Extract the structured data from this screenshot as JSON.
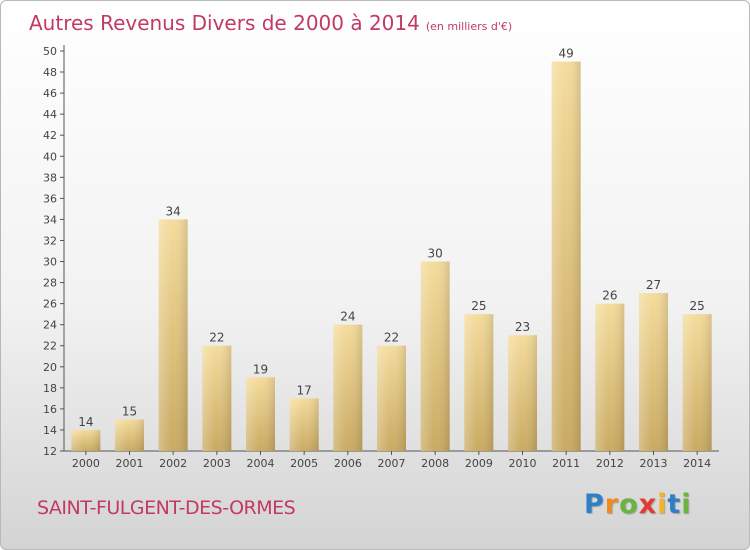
{
  "chart_data": {
    "type": "bar",
    "title": "Autres Revenus Divers de 2000 à 2014",
    "subtitle": "(en milliers d'€)",
    "categories": [
      "2000",
      "2001",
      "2002",
      "2003",
      "2004",
      "2005",
      "2006",
      "2007",
      "2008",
      "2009",
      "2010",
      "2011",
      "2012",
      "2013",
      "2014"
    ],
    "values": [
      14,
      15,
      34,
      22,
      19,
      17,
      24,
      22,
      30,
      25,
      23,
      49,
      26,
      27,
      25
    ],
    "ylim": [
      12,
      50
    ],
    "ytick_step": 2,
    "grid": false,
    "bar_color": "#e8cc84"
  },
  "commune": "SAINT-FULGENT-DES-ORMES",
  "logo": {
    "letters": [
      "P",
      "r",
      "o",
      "x",
      "i",
      "t",
      "i"
    ],
    "colors": [
      "#2e7fc4",
      "#ef8a1e",
      "#6bb33f",
      "#e23a35",
      "#f2b32b",
      "#2e7fc4",
      "#6bb33f"
    ]
  }
}
